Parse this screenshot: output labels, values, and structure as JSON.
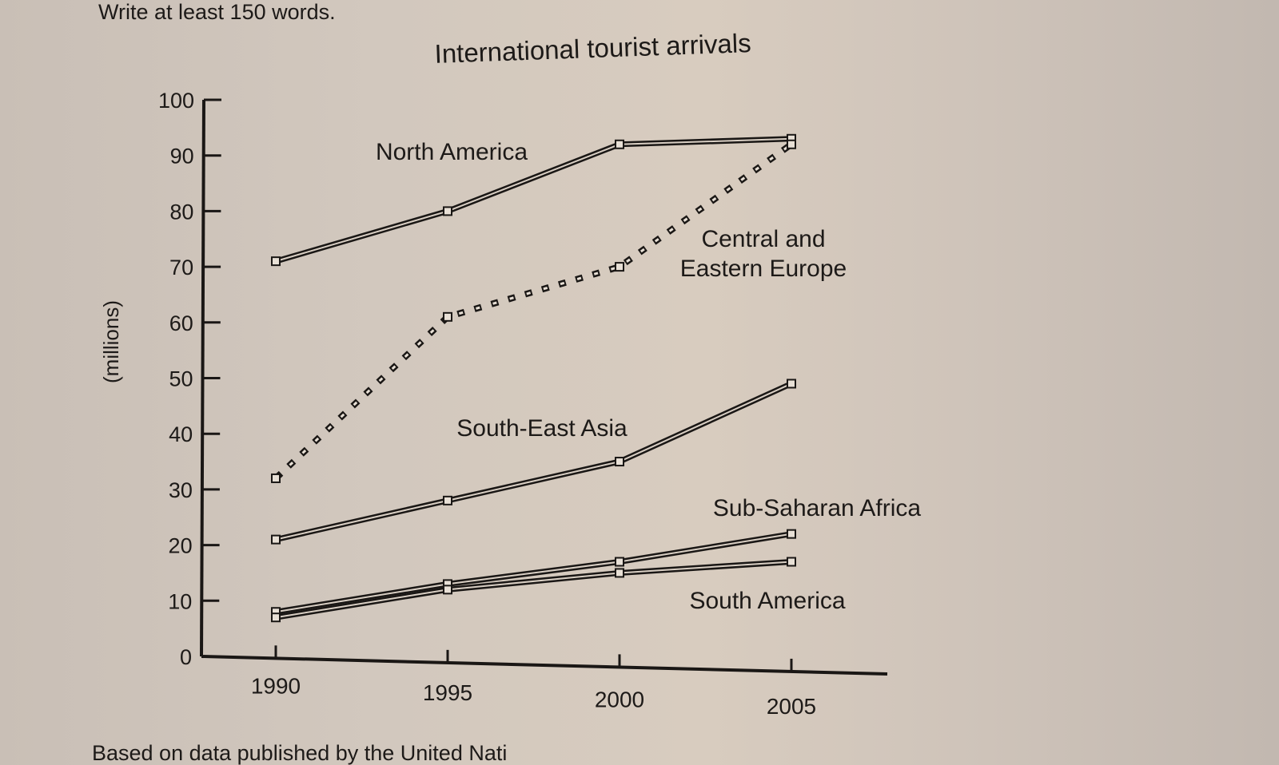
{
  "page": {
    "instruction": "Write at least 150 words.",
    "footer": "Based on data published by the United Nati"
  },
  "chart_data": {
    "type": "line",
    "title": "International tourist arrivals",
    "xlabel": "",
    "ylabel": "(millions)",
    "x": [
      1990,
      1995,
      2000,
      2005
    ],
    "x_tick_labels": [
      "1990",
      "1995",
      "2000",
      "2005"
    ],
    "y_ticks": [
      0,
      10,
      20,
      30,
      40,
      50,
      60,
      70,
      80,
      90,
      100
    ],
    "y_tick_labels": [
      "0",
      "10",
      "20",
      "30",
      "40",
      "50",
      "60",
      "70",
      "80",
      "90",
      "100"
    ],
    "ylim": [
      0,
      100
    ],
    "grid": false,
    "legend": "inline labels next to lines",
    "series": [
      {
        "name": "North America",
        "values": [
          71,
          80,
          92,
          93
        ],
        "style": "solid"
      },
      {
        "name": "Central and Eastern Europe",
        "name_lines": [
          "Central and",
          "Eastern Europe"
        ],
        "values": [
          32,
          61,
          70,
          92
        ],
        "style": "dashed"
      },
      {
        "name": "South-East Asia",
        "values": [
          21,
          28,
          35,
          49
        ],
        "style": "solid"
      },
      {
        "name": "Sub-Saharan Africa",
        "values": [
          8,
          13,
          17,
          22
        ],
        "style": "solid"
      },
      {
        "name": "South America",
        "values": [
          7,
          12,
          15,
          17
        ],
        "style": "solid"
      }
    ]
  }
}
